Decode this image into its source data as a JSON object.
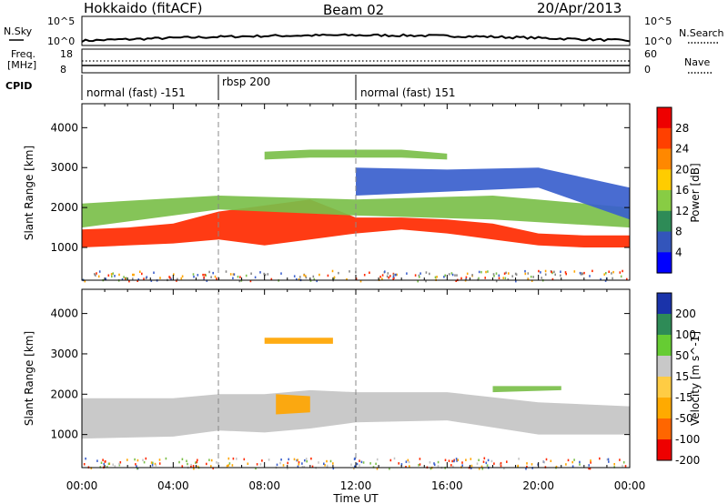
{
  "header": {
    "station": "Hokkaido (fitACF)",
    "beam": "Beam 02",
    "date": "20/Apr/2013"
  },
  "aux_panels": {
    "nsky_label": "N.Sky",
    "nsearch_label": "N.Search",
    "nsky_ticks": [
      "10^5",
      "10^0"
    ],
    "nsearch_ticks": [
      "10^5",
      "10^0"
    ],
    "freq_label": "Freq.",
    "freq_unit": "[MHz]",
    "freq_ticks": [
      "18",
      "8"
    ],
    "nave_label": "Nave",
    "nave_ticks": [
      "60",
      "0"
    ],
    "cpid_label": "CPID",
    "cpid_segments": [
      {
        "label": "normal (fast) -151",
        "start_hour": 0,
        "end_hour": 6
      },
      {
        "label": "rbsp 200",
        "start_hour": 6,
        "end_hour": 12
      },
      {
        "label": "normal (fast) 151",
        "start_hour": 12,
        "end_hour": 24
      }
    ]
  },
  "chart_data": [
    {
      "type": "heatmap",
      "name": "power",
      "ylabel": "Slant Range [km]",
      "xlabel": "Time UT",
      "xlim": [
        0,
        24
      ],
      "ylim": [
        180,
        4600
      ],
      "yticks": [
        1000,
        2000,
        3000,
        4000
      ],
      "xticks": [
        "00:00",
        "04:00",
        "08:00",
        "12:00",
        "16:00",
        "20:00",
        "00:00"
      ],
      "colorbar": {
        "label": "Power [dB]",
        "ticks": [
          "28",
          "24",
          "20",
          "16",
          "12",
          "8",
          "4"
        ],
        "colors": [
          "#ee0000",
          "#ff4000",
          "#ff8800",
          "#ffcc00",
          "#88cc44",
          "#2e8b57",
          "#3355bb",
          "#0000ff"
        ]
      },
      "bands": [
        {
          "level": "red",
          "points": [
            [
              0,
              1000,
              1450
            ],
            [
              2,
              1050,
              1500
            ],
            [
              4,
              1100,
              1600
            ],
            [
              6,
              1200,
              1900
            ],
            [
              8,
              1050,
              2050
            ],
            [
              10,
              1200,
              2200
            ],
            [
              12,
              1350,
              1750
            ],
            [
              14,
              1450,
              1750
            ],
            [
              16,
              1350,
              1700
            ],
            [
              18,
              1200,
              1600
            ],
            [
              20,
              1050,
              1350
            ],
            [
              22,
              1000,
              1300
            ],
            [
              24,
              1000,
              1300
            ]
          ]
        },
        {
          "level": "green",
          "points": [
            [
              0,
              1500,
              2100
            ],
            [
              6,
              1950,
              2300
            ],
            [
              12,
              1800,
              2200
            ],
            [
              18,
              1700,
              2300
            ],
            [
              24,
              1500,
              2000
            ]
          ]
        },
        {
          "level": "green",
          "points": [
            [
              8,
              3200,
              3400
            ],
            [
              10,
              3250,
              3450
            ],
            [
              14,
              3250,
              3450
            ],
            [
              16,
              3200,
              3350
            ]
          ]
        },
        {
          "level": "blue",
          "points": [
            [
              12,
              2300,
              3000
            ],
            [
              16,
              2400,
              2950
            ],
            [
              20,
              2500,
              3000
            ],
            [
              24,
              1700,
              2500
            ]
          ]
        }
      ]
    },
    {
      "type": "heatmap",
      "name": "velocity",
      "ylabel": "Slant Range [km]",
      "xlabel": "Time UT",
      "xlim": [
        0,
        24
      ],
      "ylim": [
        180,
        4600
      ],
      "yticks": [
        1000,
        2000,
        3000,
        4000
      ],
      "xticks": [
        "00:00",
        "04:00",
        "08:00",
        "12:00",
        "16:00",
        "20:00",
        "00:00"
      ],
      "colorbar": {
        "label": "Velocity [m s^-1]",
        "ticks": [
          "200",
          "100",
          "50",
          "15",
          "-15",
          "-50",
          "-100",
          "-200"
        ],
        "colors": [
          "#1a33aa",
          "#2e8b57",
          "#66cc33",
          "#c8c8c8",
          "#ffcc44",
          "#ffaa00",
          "#ff6600",
          "#ee0000"
        ]
      },
      "bands": [
        {
          "level": "gray",
          "points": [
            [
              0,
              900,
              1900
            ],
            [
              4,
              950,
              1900
            ],
            [
              6,
              1100,
              2000
            ],
            [
              8,
              1050,
              2000
            ],
            [
              10,
              1150,
              2100
            ],
            [
              12,
              1300,
              2050
            ],
            [
              16,
              1350,
              2050
            ],
            [
              20,
              1000,
              1800
            ],
            [
              24,
              1000,
              1700
            ]
          ]
        },
        {
          "level": "orange",
          "points": [
            [
              8.5,
              1500,
              2000
            ],
            [
              10,
              1550,
              1950
            ]
          ]
        },
        {
          "level": "orange",
          "points": [
            [
              8,
              3250,
              3400
            ],
            [
              11,
              3250,
              3400
            ]
          ]
        },
        {
          "level": "green",
          "points": [
            [
              18,
              2050,
              2200
            ],
            [
              21,
              2100,
              2200
            ]
          ]
        }
      ]
    }
  ],
  "time_label": "Time UT"
}
